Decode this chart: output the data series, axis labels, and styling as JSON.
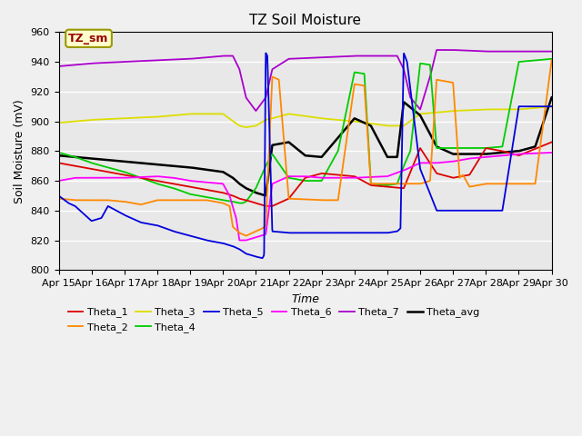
{
  "title": "TZ Soil Moisture",
  "xlabel": "Time",
  "ylabel": "Soil Moisture (mV)",
  "ylim": [
    800,
    960
  ],
  "xlim": [
    0,
    15
  ],
  "xtick_labels": [
    "Apr 15",
    "Apr 16",
    "Apr 17",
    "Apr 18",
    "Apr 19",
    "Apr 20",
    "Apr 21",
    "Apr 22",
    "Apr 23",
    "Apr 24",
    "Apr 25",
    "Apr 26",
    "Apr 27",
    "Apr 28",
    "Apr 29",
    "Apr 30"
  ],
  "colors": {
    "Theta_1": "#dd0000",
    "Theta_2": "#ff8800",
    "Theta_3": "#dddd00",
    "Theta_4": "#00cc00",
    "Theta_5": "#0000dd",
    "Theta_6": "#ff00ff",
    "Theta_7": "#aa00cc",
    "Theta_avg": "#000000"
  },
  "bg_color": "#e8e8e8",
  "label_box_color": "#ffffcc",
  "label_box_text": "TZ_sm",
  "label_box_text_color": "#990000"
}
